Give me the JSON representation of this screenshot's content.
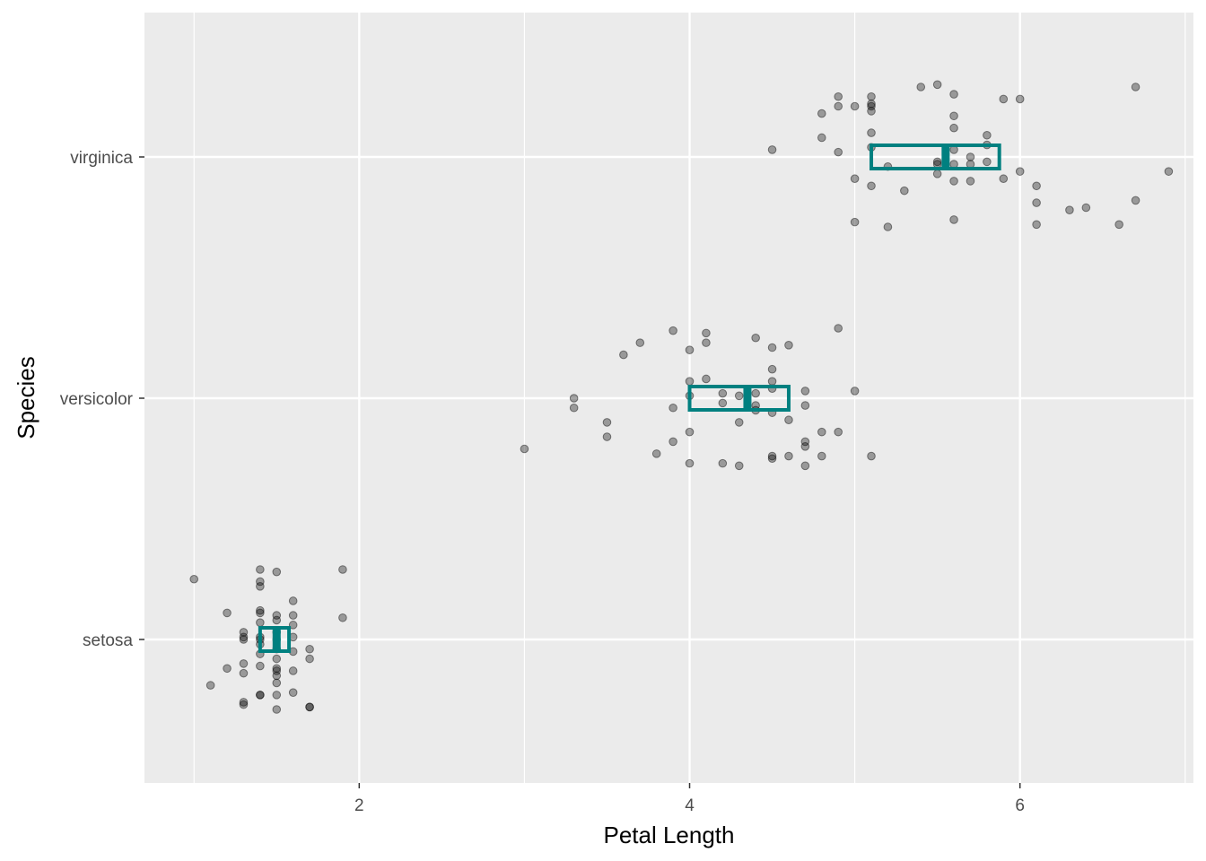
{
  "chart_data": {
    "type": "scatter",
    "title": "",
    "xlabel": "Petal Length",
    "ylabel": "Species",
    "xlim": [
      0.7,
      7.05
    ],
    "x_ticks": [
      2,
      4,
      6
    ],
    "x_minor_ticks": [
      1,
      3,
      5,
      7
    ],
    "categories": [
      "setosa",
      "versicolor",
      "virginica"
    ],
    "grid": true,
    "legend": "none",
    "colors": {
      "panel": "#ebebeb",
      "grid": "#ffffff",
      "points": "#000000",
      "summary": "#008080",
      "text": "#4d4d4d"
    },
    "point_alpha": 0.35,
    "summary_boxes": [
      {
        "species": "setosa",
        "q1": 1.4,
        "median": 1.5,
        "q3": 1.575
      },
      {
        "species": "versicolor",
        "q1": 4.0,
        "median": 4.35,
        "q3": 4.6
      },
      {
        "species": "virginica",
        "q1": 5.1,
        "median": 5.55,
        "q3": 5.875
      }
    ],
    "series": [
      {
        "category": "setosa",
        "points": [
          [
            1.0,
            0.25
          ],
          [
            1.1,
            -0.19
          ],
          [
            1.2,
            0.11
          ],
          [
            1.2,
            -0.12
          ],
          [
            1.3,
            0.03
          ],
          [
            1.3,
            0.0
          ],
          [
            1.3,
            0.01
          ],
          [
            1.3,
            -0.14
          ],
          [
            1.3,
            -0.26
          ],
          [
            1.3,
            -0.27
          ],
          [
            1.3,
            -0.1
          ],
          [
            1.4,
            0.29
          ],
          [
            1.4,
            0.24
          ],
          [
            1.4,
            0.22
          ],
          [
            1.4,
            0.12
          ],
          [
            1.4,
            0.11
          ],
          [
            1.4,
            0.07
          ],
          [
            1.4,
            0.01
          ],
          [
            1.4,
            0.0
          ],
          [
            1.4,
            -0.02
          ],
          [
            1.4,
            -0.06
          ],
          [
            1.4,
            -0.11
          ],
          [
            1.4,
            -0.23
          ],
          [
            1.4,
            -0.23
          ],
          [
            1.5,
            0.28
          ],
          [
            1.5,
            0.1
          ],
          [
            1.5,
            0.08
          ],
          [
            1.5,
            0.03
          ],
          [
            1.5,
            0.0
          ],
          [
            1.5,
            -0.04
          ],
          [
            1.5,
            -0.08
          ],
          [
            1.5,
            -0.12
          ],
          [
            1.5,
            -0.13
          ],
          [
            1.5,
            -0.15
          ],
          [
            1.5,
            -0.18
          ],
          [
            1.5,
            -0.23
          ],
          [
            1.5,
            -0.29
          ],
          [
            1.6,
            0.16
          ],
          [
            1.6,
            0.1
          ],
          [
            1.6,
            0.06
          ],
          [
            1.6,
            0.01
          ],
          [
            1.6,
            -0.05
          ],
          [
            1.6,
            -0.13
          ],
          [
            1.6,
            -0.22
          ],
          [
            1.7,
            -0.04
          ],
          [
            1.7,
            -0.08
          ],
          [
            1.7,
            -0.28
          ],
          [
            1.7,
            -0.28
          ],
          [
            1.9,
            0.29
          ],
          [
            1.9,
            0.09
          ]
        ]
      },
      {
        "category": "versicolor",
        "points": [
          [
            3.0,
            -0.21
          ],
          [
            3.3,
            0.0
          ],
          [
            3.3,
            -0.04
          ],
          [
            3.5,
            -0.1
          ],
          [
            3.5,
            -0.16
          ],
          [
            3.6,
            0.18
          ],
          [
            3.7,
            0.23
          ],
          [
            3.8,
            -0.23
          ],
          [
            3.9,
            0.28
          ],
          [
            3.9,
            -0.04
          ],
          [
            3.9,
            -0.18
          ],
          [
            4.0,
            0.2
          ],
          [
            4.0,
            0.07
          ],
          [
            4.0,
            0.01
          ],
          [
            4.0,
            -0.14
          ],
          [
            4.0,
            -0.27
          ],
          [
            4.1,
            0.27
          ],
          [
            4.1,
            0.23
          ],
          [
            4.1,
            0.08
          ],
          [
            4.2,
            0.02
          ],
          [
            4.2,
            -0.27
          ],
          [
            4.3,
            -0.1
          ],
          [
            4.3,
            -0.28
          ],
          [
            4.4,
            0.25
          ],
          [
            4.4,
            0.02
          ],
          [
            4.4,
            -0.03
          ],
          [
            4.5,
            0.21
          ],
          [
            4.5,
            0.12
          ],
          [
            4.5,
            0.07
          ],
          [
            4.5,
            0.04
          ],
          [
            4.5,
            -0.06
          ],
          [
            4.5,
            -0.24
          ],
          [
            4.5,
            -0.25
          ],
          [
            4.6,
            0.22
          ],
          [
            4.6,
            -0.09
          ],
          [
            4.6,
            -0.24
          ],
          [
            4.7,
            0.03
          ],
          [
            4.7,
            -0.03
          ],
          [
            4.7,
            -0.18
          ],
          [
            4.7,
            -0.2
          ],
          [
            4.7,
            -0.28
          ],
          [
            4.8,
            -0.14
          ],
          [
            4.8,
            -0.24
          ],
          [
            4.9,
            0.29
          ],
          [
            4.9,
            -0.14
          ],
          [
            5.0,
            0.03
          ],
          [
            5.1,
            -0.24
          ],
          [
            4.3,
            0.01
          ],
          [
            4.2,
            -0.02
          ],
          [
            4.4,
            -0.05
          ]
        ]
      },
      {
        "category": "virginica",
        "points": [
          [
            4.5,
            0.03
          ],
          [
            4.8,
            0.18
          ],
          [
            4.8,
            0.08
          ],
          [
            4.9,
            0.25
          ],
          [
            4.9,
            0.21
          ],
          [
            4.9,
            0.02
          ],
          [
            5.0,
            0.21
          ],
          [
            5.0,
            -0.09
          ],
          [
            5.0,
            -0.27
          ],
          [
            5.1,
            0.25
          ],
          [
            5.1,
            0.22
          ],
          [
            5.1,
            0.21
          ],
          [
            5.1,
            0.19
          ],
          [
            5.1,
            0.1
          ],
          [
            5.1,
            0.04
          ],
          [
            5.1,
            -0.12
          ],
          [
            5.2,
            -0.04
          ],
          [
            5.2,
            -0.29
          ],
          [
            5.3,
            -0.14
          ],
          [
            5.4,
            0.29
          ],
          [
            5.5,
            0.3
          ],
          [
            5.5,
            -0.03
          ],
          [
            5.5,
            -0.07
          ],
          [
            5.6,
            0.26
          ],
          [
            5.6,
            0.17
          ],
          [
            5.6,
            0.12
          ],
          [
            5.6,
            0.03
          ],
          [
            5.6,
            -0.1
          ],
          [
            5.6,
            -0.26
          ],
          [
            5.6,
            -0.03
          ],
          [
            5.7,
            0.0
          ],
          [
            5.7,
            -0.03
          ],
          [
            5.7,
            -0.1
          ],
          [
            5.8,
            0.09
          ],
          [
            5.8,
            0.05
          ],
          [
            5.8,
            -0.02
          ],
          [
            5.9,
            0.24
          ],
          [
            5.9,
            -0.09
          ],
          [
            6.0,
            0.24
          ],
          [
            6.0,
            -0.06
          ],
          [
            6.1,
            -0.12
          ],
          [
            6.1,
            -0.19
          ],
          [
            6.1,
            -0.28
          ],
          [
            6.3,
            -0.22
          ],
          [
            6.4,
            -0.21
          ],
          [
            6.6,
            -0.28
          ],
          [
            6.7,
            0.29
          ],
          [
            6.7,
            -0.18
          ],
          [
            6.9,
            -0.06
          ],
          [
            5.5,
            -0.02
          ]
        ]
      }
    ]
  }
}
